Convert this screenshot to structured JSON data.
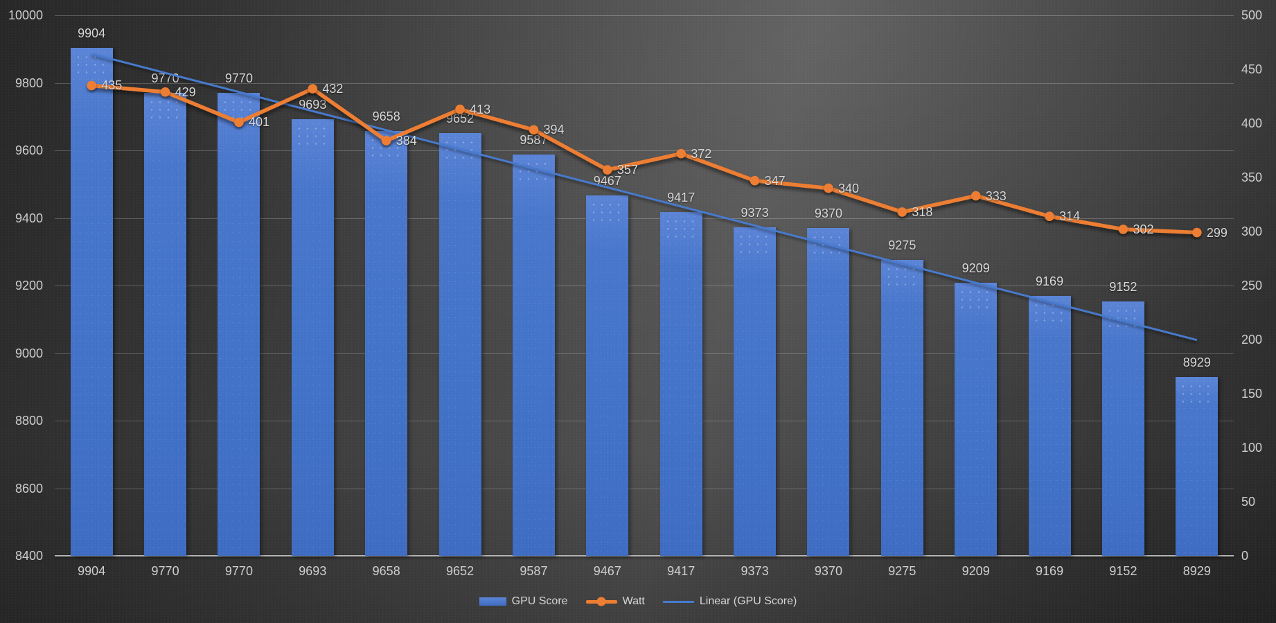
{
  "chart_data": {
    "type": "combo",
    "categories": [
      "9904",
      "9770",
      "9770",
      "9693",
      "9658",
      "9652",
      "9587",
      "9467",
      "9417",
      "9373",
      "9370",
      "9275",
      "9209",
      "9169",
      "9152",
      "8929"
    ],
    "series": [
      {
        "name": "GPU Score",
        "type": "bar",
        "axis": "primary",
        "color": "#4472C4",
        "values": [
          9904,
          9770,
          9770,
          9693,
          9658,
          9652,
          9587,
          9467,
          9417,
          9373,
          9370,
          9275,
          9209,
          9169,
          9152,
          8929
        ]
      },
      {
        "name": "Watt",
        "type": "line",
        "axis": "secondary",
        "color": "#ED7D31",
        "values": [
          435,
          429,
          401,
          432,
          384,
          413,
          394,
          357,
          372,
          347,
          340,
          318,
          333,
          314,
          302,
          299
        ]
      },
      {
        "name": "Linear (GPU Score)",
        "type": "linear_trendline",
        "of": "GPU Score",
        "color": "#4679cc"
      }
    ],
    "primary_axis": {
      "min": 8400,
      "max": 10000,
      "step": 200,
      "tick_labels": [
        "10000",
        "9800",
        "9600",
        "9400",
        "9200",
        "9000",
        "8800",
        "8600",
        "8400"
      ]
    },
    "secondary_axis": {
      "min": 0,
      "max": 500,
      "step": 50,
      "tick_labels": [
        "500",
        "450",
        "400",
        "350",
        "300",
        "250",
        "200",
        "150",
        "100",
        "50",
        "0"
      ]
    },
    "x_axis_labels": [
      "9904",
      "9770",
      "9770",
      "9693",
      "9658",
      "9652",
      "9587",
      "9467",
      "9417",
      "9373",
      "9370",
      "9275",
      "9209",
      "9169",
      "9152",
      "8929"
    ],
    "legend": {
      "position": "bottom",
      "items": [
        "GPU Score",
        "Watt",
        "Linear (GPU Score)"
      ]
    },
    "grid": true,
    "title": ""
  },
  "colors": {
    "bar": "#4472C4",
    "watt_line": "#ED7D31",
    "trendline": "#4679cc",
    "data_label_text": "#d9d9d9",
    "axis_text": "#cfcecd",
    "gridline": "rgba(255,255,255,0.22)",
    "axis_line": "#b3b3b3"
  }
}
